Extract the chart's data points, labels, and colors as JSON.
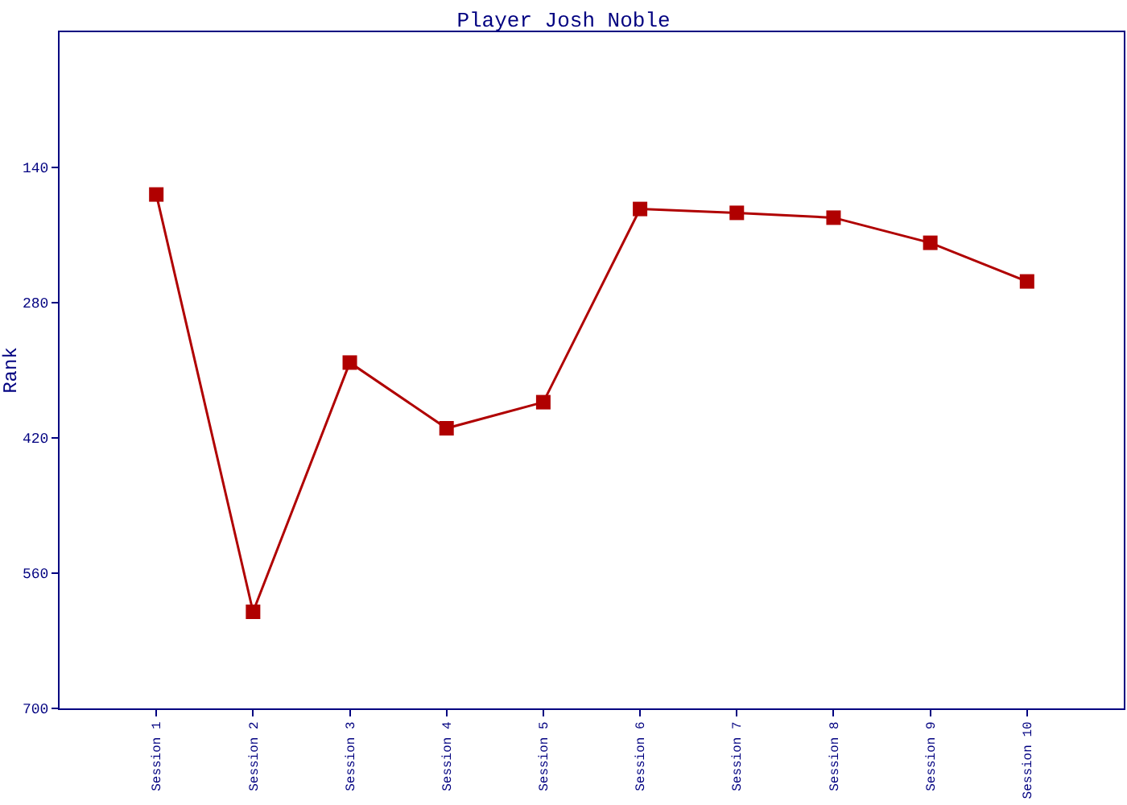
{
  "chart_data": {
    "type": "line",
    "title": "Player Josh Noble",
    "ylabel": "Rank",
    "categories": [
      "Session 1",
      "Session 2",
      "Session 3",
      "Session 4",
      "Session 5",
      "Session 6",
      "Session 7",
      "Session 8",
      "Session 9",
      "Session 10"
    ],
    "series": [
      {
        "color": "#b00000",
        "values": [
          168,
          600,
          342,
          410,
          383,
          183,
          187,
          192,
          218,
          258
        ]
      }
    ],
    "ylim": [
      700,
      0
    ],
    "yticks": [
      140,
      280,
      420,
      560,
      700
    ],
    "marker": "square",
    "line_style": "solid"
  }
}
